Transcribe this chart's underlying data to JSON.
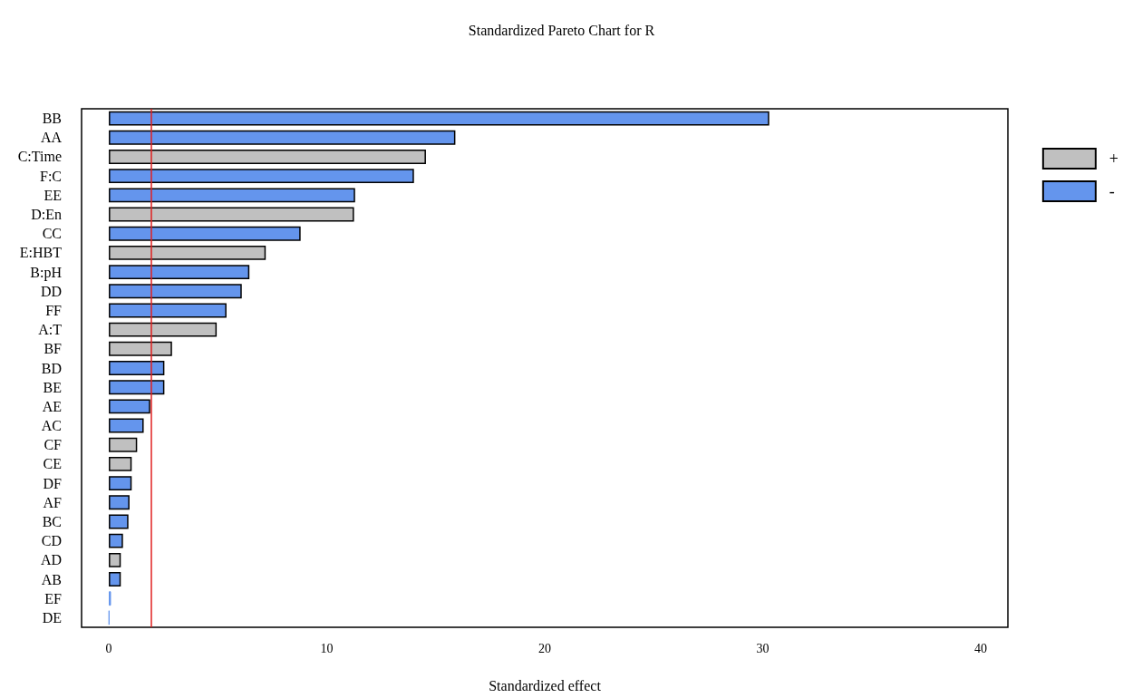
{
  "chart_data": {
    "type": "bar",
    "orientation": "horizontal",
    "stacked": true,
    "title": "Standardized Pareto Chart for R",
    "xlabel": "Standardized effect",
    "categories": [
      "BB",
      "AA",
      "C:Time",
      "F:C",
      "EE",
      "D:En",
      "CC",
      "E:HBT",
      "B:pH",
      "DD",
      "FF",
      "A:T",
      "BF",
      "BD",
      "BE",
      "AE",
      "AC",
      "CF",
      "CE",
      "DF",
      "AF",
      "BC",
      "CD",
      "AD",
      "AB",
      "EF",
      "DE"
    ],
    "series": [
      {
        "name": "+",
        "color": "#c0c0c0",
        "values": [
          null,
          null,
          14.55,
          null,
          null,
          11.25,
          null,
          7.2,
          null,
          null,
          null,
          4.95,
          2.9,
          null,
          null,
          null,
          null,
          1.3,
          1.05,
          null,
          null,
          null,
          null,
          0.55,
          null,
          null,
          null
        ]
      },
      {
        "name": "-",
        "color": "#6495ed",
        "values": [
          30.3,
          15.9,
          null,
          14.0,
          11.3,
          null,
          8.8,
          null,
          6.45,
          6.1,
          5.4,
          null,
          null,
          2.55,
          2.55,
          1.9,
          1.6,
          null,
          null,
          1.05,
          0.95,
          0.9,
          0.65,
          null,
          0.55,
          0.1,
          0.02
        ]
      }
    ],
    "xlim": [
      -1.25,
      41.25
    ],
    "xticks": [
      0,
      10,
      20,
      30,
      40
    ],
    "ref_lines": [
      {
        "axis": "x",
        "value": 1.96,
        "color": "#e02020"
      }
    ],
    "grid": false,
    "legend": "top right"
  }
}
